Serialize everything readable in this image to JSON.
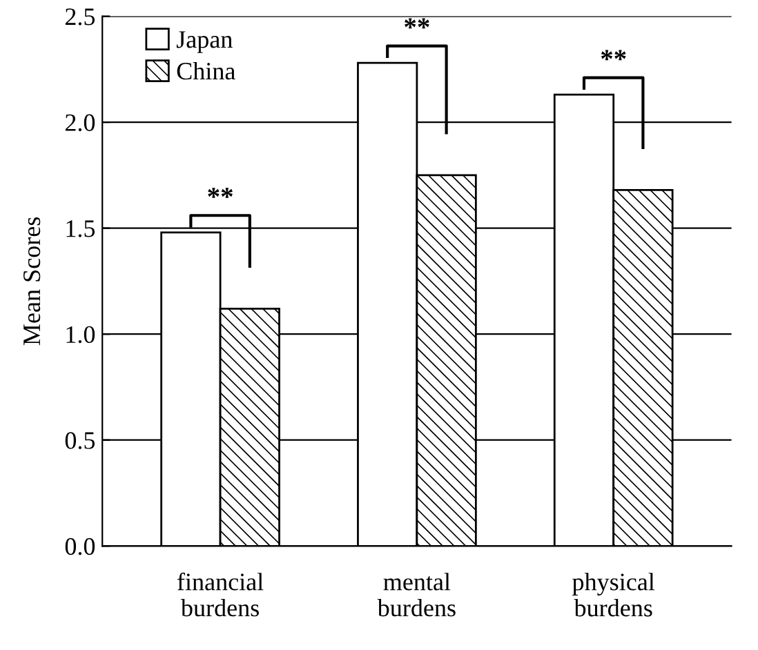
{
  "chart_data": {
    "type": "bar",
    "ylabel": "Mean Scores",
    "categories": [
      "financial\nburdens",
      "mental\nburdens",
      "physical\nburdens"
    ],
    "series": [
      {
        "name": "Japan",
        "color": "#ffffff",
        "values": [
          1.48,
          2.28,
          2.13
        ]
      },
      {
        "name": "China",
        "color": "#000000",
        "values": [
          1.12,
          1.75,
          1.68
        ]
      }
    ],
    "ylim": [
      0,
      2.5
    ],
    "yticks": [
      {
        "value": 0,
        "label": "0.0"
      },
      {
        "value": 0.5,
        "label": "0.5"
      },
      {
        "value": 1,
        "label": "1.0"
      },
      {
        "value": 1.5,
        "label": "1.5"
      },
      {
        "value": 2,
        "label": "2.0"
      },
      {
        "value": 2.5,
        "label": "2.5"
      }
    ],
    "annotations": [
      "**",
      "**",
      "**"
    ],
    "grid": "y",
    "legend": "top left"
  }
}
